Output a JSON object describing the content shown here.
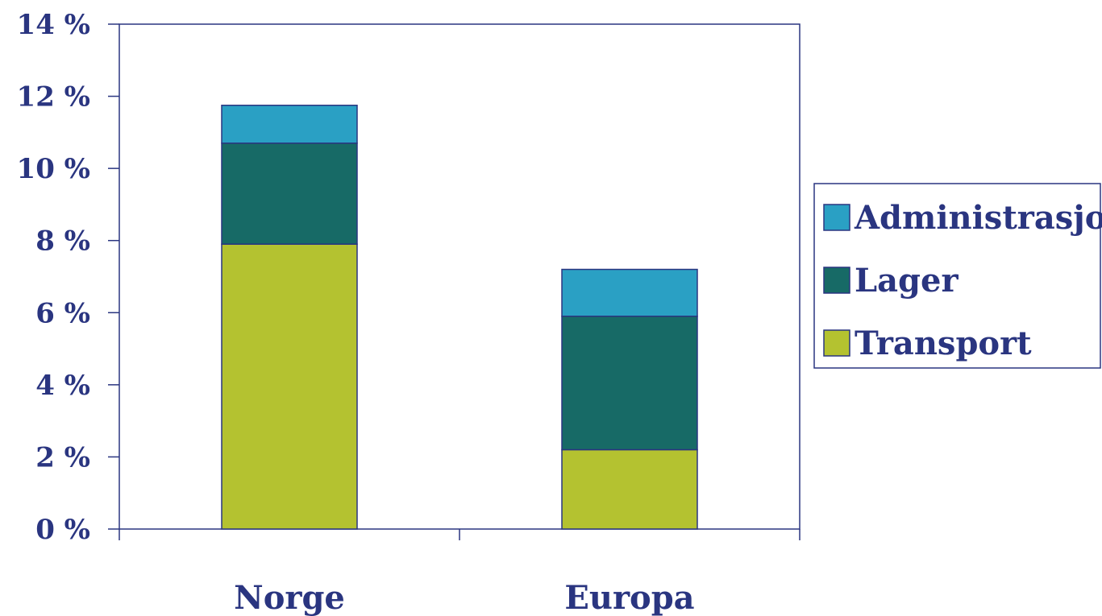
{
  "colors": {
    "axis": "#2a3580",
    "text": "#2a3580",
    "Administrasjon": "#2aa0c4",
    "Lager": "#176a66",
    "Transport": "#b4c230"
  },
  "chart_data": {
    "type": "bar",
    "stacked": true,
    "categories": [
      "Norge",
      "Europa"
    ],
    "series": [
      {
        "name": "Transport",
        "values": [
          7.9,
          2.2
        ]
      },
      {
        "name": "Lager",
        "values": [
          2.8,
          3.7
        ]
      },
      {
        "name": "Administrasjon",
        "values": [
          1.05,
          1.3
        ]
      }
    ],
    "yticks": [
      "0 %",
      "2 %",
      "4 %",
      "6 %",
      "8 %",
      "10 %",
      "12 %",
      "14 %"
    ],
    "ylim": [
      0,
      14
    ],
    "legend": {
      "position": "right",
      "entries": [
        "Administrasjon",
        "Lager",
        "Transport"
      ]
    },
    "grid": false
  }
}
